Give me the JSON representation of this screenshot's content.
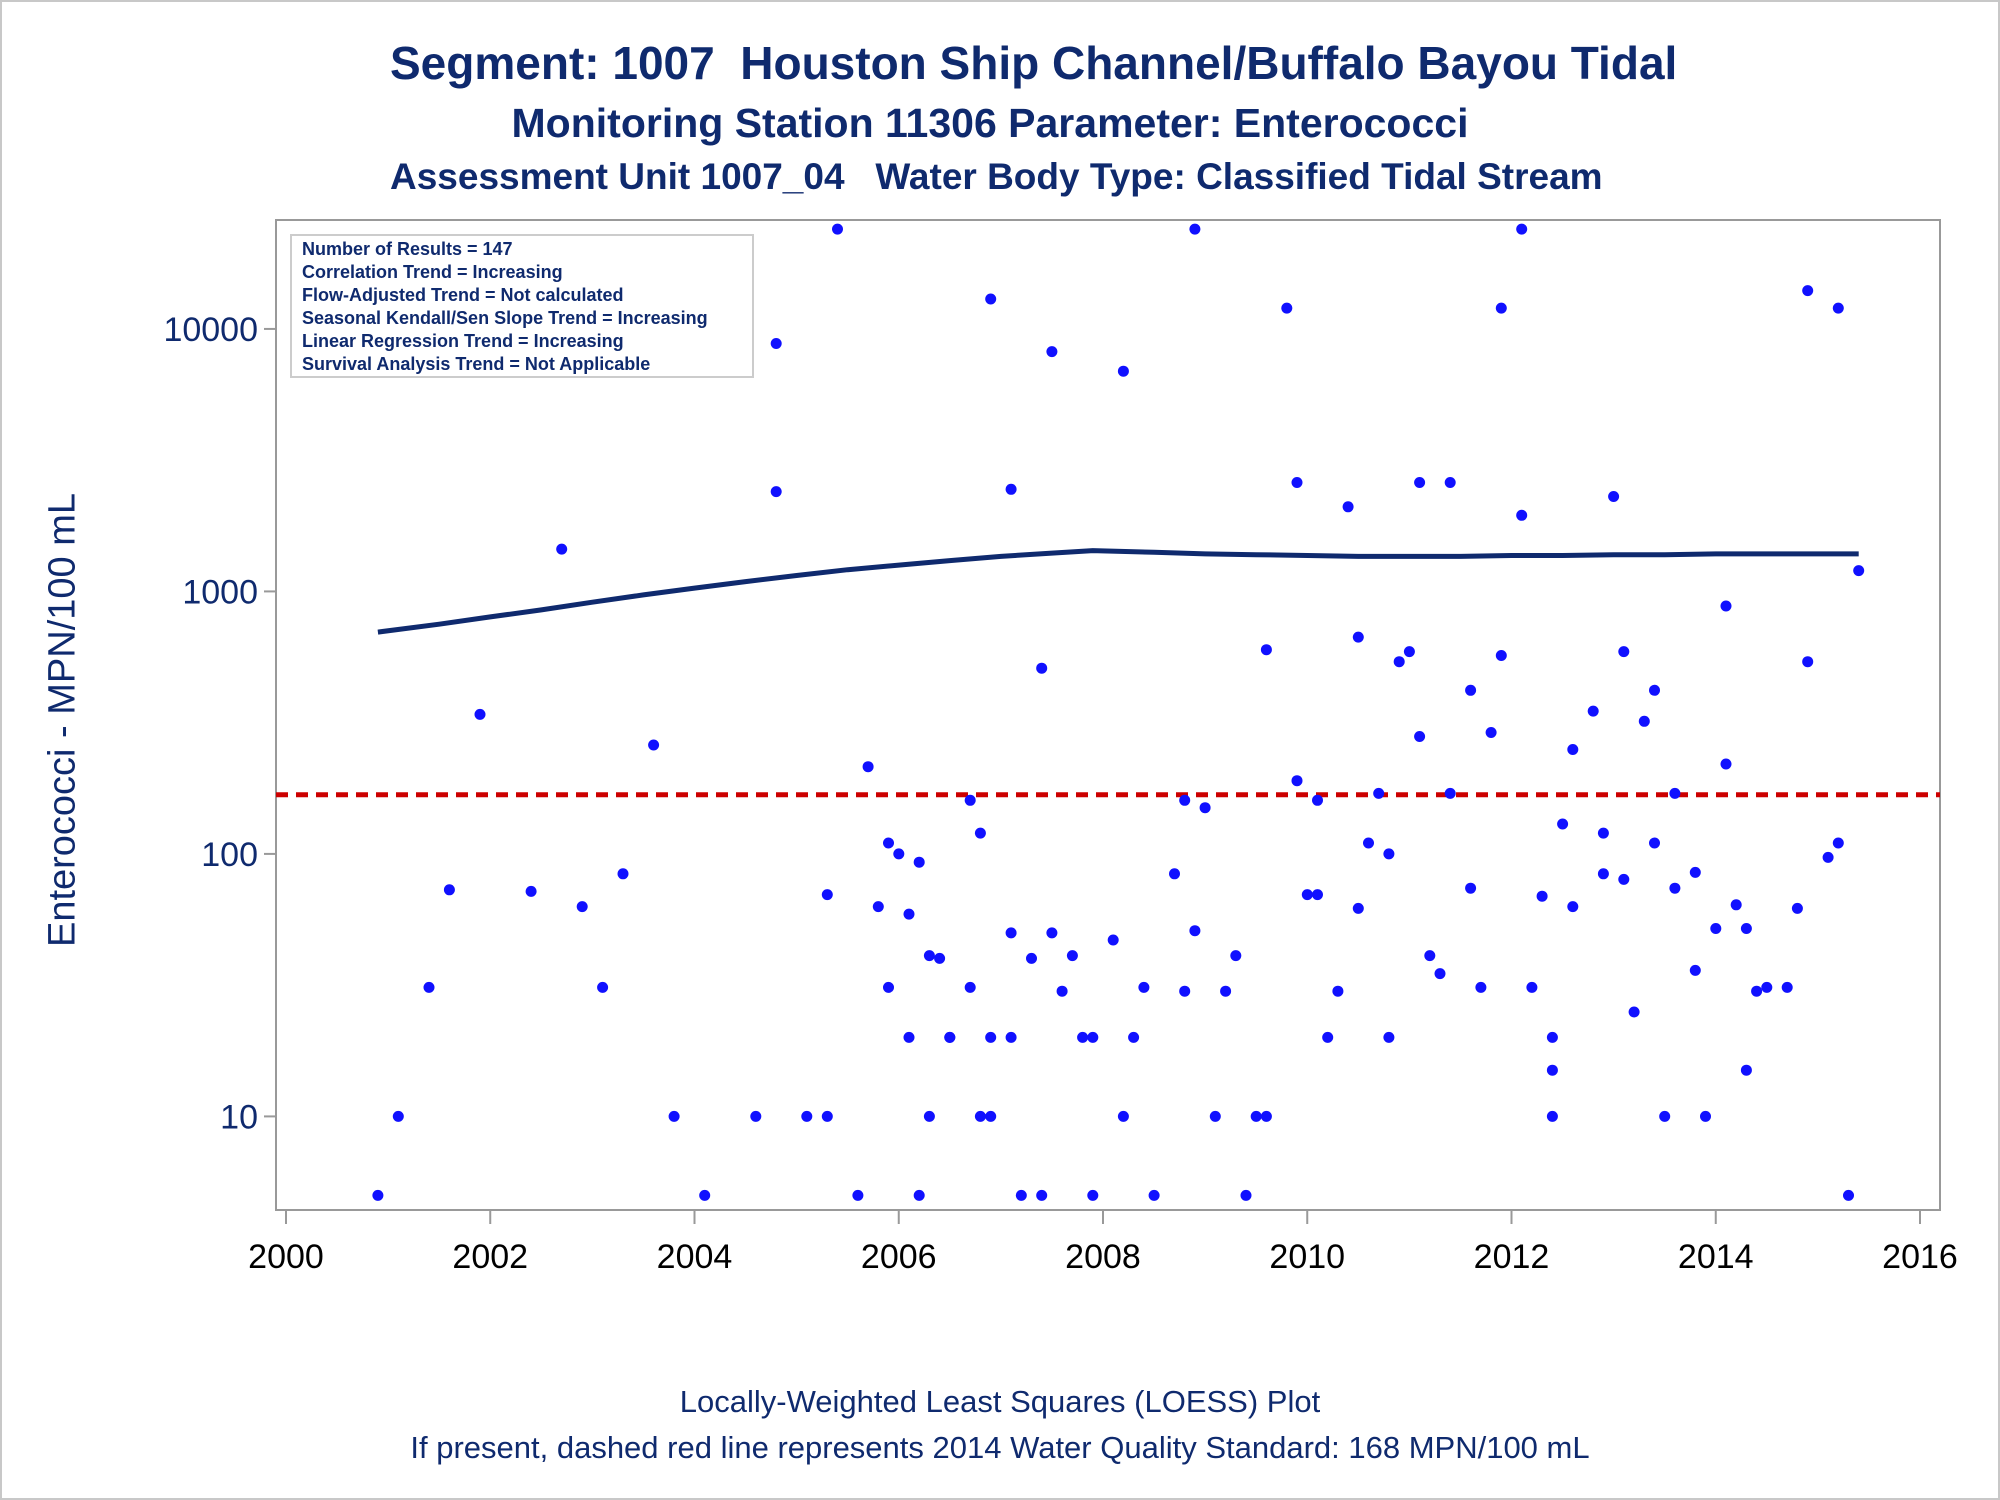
{
  "titles": {
    "line1": "Segment: 1007  Houston Ship Channel/Buffalo Bayou Tidal",
    "line2": "Monitoring Station 11306 Parameter: Enterococci",
    "line3": "Assessment Unit 1007_04   Water Body Type: Classified Tidal Stream"
  },
  "footnotes": {
    "line1": "Locally-Weighted Least Squares (LOESS) Plot",
    "line2": "If present, dashed red line represents 2014 Water Quality Standard: 168 MPN/100 mL"
  },
  "inset": [
    "Number of Results = 147",
    "Correlation Trend = Increasing",
    "Flow-Adjusted Trend = Not calculated",
    "Seasonal Kendall/Sen Slope Trend = Increasing",
    "Linear Regression Trend = Increasing",
    "Survival Analysis Trend = Not Applicable"
  ],
  "colors": {
    "text": "#0f2a6e",
    "points": "#1010ff",
    "loess": "#0f2a6e",
    "standard": "#cc0000",
    "axis": "#999999"
  },
  "chart_data": {
    "type": "scatter",
    "ylabel": "Enterococci - MPN/100 mL",
    "xlabel": "",
    "x_scale": "linear",
    "y_scale": "log",
    "xlim": [
      2000,
      2016
    ],
    "ylim": [
      4.4,
      26000
    ],
    "x_ticks": [
      2000,
      2002,
      2004,
      2006,
      2008,
      2010,
      2012,
      2014,
      2016
    ],
    "y_ticks": [
      10,
      100,
      1000,
      10000
    ],
    "y_tick_labels": [
      "10",
      "100",
      "1000",
      "10000"
    ],
    "standard_line": 168,
    "points": [
      [
        2000.9,
        5
      ],
      [
        2001.1,
        10
      ],
      [
        2001.4,
        31
      ],
      [
        2001.6,
        73
      ],
      [
        2001.9,
        340
      ],
      [
        2002.4,
        72
      ],
      [
        2002.7,
        1450
      ],
      [
        2002.9,
        63
      ],
      [
        2003.1,
        31
      ],
      [
        2003.3,
        84
      ],
      [
        2003.6,
        260
      ],
      [
        2003.8,
        10
      ],
      [
        2004.1,
        5
      ],
      [
        2004.6,
        10
      ],
      [
        2004.8,
        8800
      ],
      [
        2004.8,
        2400
      ],
      [
        2005.1,
        10
      ],
      [
        2005.3,
        70
      ],
      [
        2005.3,
        10
      ],
      [
        2005.4,
        24000
      ],
      [
        2005.6,
        5
      ],
      [
        2005.7,
        215
      ],
      [
        2005.8,
        63
      ],
      [
        2005.9,
        110
      ],
      [
        2005.9,
        31
      ],
      [
        2006.0,
        100
      ],
      [
        2006.1,
        59
      ],
      [
        2006.1,
        20
      ],
      [
        2006.2,
        93
      ],
      [
        2006.2,
        5
      ],
      [
        2006.3,
        10
      ],
      [
        2006.3,
        41
      ],
      [
        2006.4,
        40
      ],
      [
        2006.5,
        20
      ],
      [
        2006.5,
        20
      ],
      [
        2006.7,
        31
      ],
      [
        2006.7,
        160
      ],
      [
        2006.8,
        120
      ],
      [
        2006.8,
        10
      ],
      [
        2006.9,
        10
      ],
      [
        2006.9,
        20
      ],
      [
        2006.9,
        13000
      ],
      [
        2007.1,
        50
      ],
      [
        2007.1,
        2450
      ],
      [
        2007.1,
        20
      ],
      [
        2007.2,
        5
      ],
      [
        2007.3,
        40
      ],
      [
        2007.4,
        510
      ],
      [
        2007.4,
        5
      ],
      [
        2007.5,
        8200
      ],
      [
        2007.5,
        50
      ],
      [
        2007.6,
        30
      ],
      [
        2007.7,
        41
      ],
      [
        2007.8,
        20
      ],
      [
        2007.9,
        20
      ],
      [
        2007.9,
        5
      ],
      [
        2008.1,
        47
      ],
      [
        2008.2,
        10
      ],
      [
        2008.2,
        6900
      ],
      [
        2008.3,
        20
      ],
      [
        2008.4,
        31
      ],
      [
        2008.5,
        5
      ],
      [
        2008.7,
        84
      ],
      [
        2008.8,
        30
      ],
      [
        2008.8,
        160
      ],
      [
        2008.9,
        51
      ],
      [
        2008.9,
        24000
      ],
      [
        2009.0,
        150
      ],
      [
        2009.1,
        10
      ],
      [
        2009.2,
        30
      ],
      [
        2009.3,
        41
      ],
      [
        2009.4,
        5
      ],
      [
        2009.5,
        10
      ],
      [
        2009.6,
        600
      ],
      [
        2009.6,
        10
      ],
      [
        2009.8,
        12000
      ],
      [
        2009.9,
        190
      ],
      [
        2009.9,
        2600
      ],
      [
        2010.0,
        70
      ],
      [
        2010.1,
        160
      ],
      [
        2010.1,
        70
      ],
      [
        2010.2,
        20
      ],
      [
        2010.3,
        30
      ],
      [
        2010.4,
        2100
      ],
      [
        2010.5,
        62
      ],
      [
        2010.5,
        670
      ],
      [
        2010.6,
        110
      ],
      [
        2010.7,
        170
      ],
      [
        2010.8,
        20
      ],
      [
        2010.8,
        100
      ],
      [
        2010.9,
        540
      ],
      [
        2011.0,
        590
      ],
      [
        2011.1,
        280
      ],
      [
        2011.1,
        2600
      ],
      [
        2011.2,
        41
      ],
      [
        2011.3,
        35
      ],
      [
        2011.4,
        170
      ],
      [
        2011.4,
        2600
      ],
      [
        2011.6,
        74
      ],
      [
        2011.6,
        420
      ],
      [
        2011.7,
        31
      ],
      [
        2011.8,
        290
      ],
      [
        2011.9,
        12000
      ],
      [
        2011.9,
        570
      ],
      [
        2012.1,
        24000
      ],
      [
        2012.1,
        1950
      ],
      [
        2012.2,
        31
      ],
      [
        2012.3,
        69
      ],
      [
        2012.4,
        20
      ],
      [
        2012.4,
        10
      ],
      [
        2012.4,
        15
      ],
      [
        2012.5,
        130
      ],
      [
        2012.6,
        250
      ],
      [
        2012.6,
        63
      ],
      [
        2012.8,
        350
      ],
      [
        2012.9,
        84
      ],
      [
        2012.9,
        120
      ],
      [
        2013.0,
        2300
      ],
      [
        2013.1,
        590
      ],
      [
        2013.1,
        80
      ],
      [
        2013.2,
        25
      ],
      [
        2013.3,
        320
      ],
      [
        2013.4,
        110
      ],
      [
        2013.4,
        420
      ],
      [
        2013.5,
        10
      ],
      [
        2013.6,
        170
      ],
      [
        2013.6,
        74
      ],
      [
        2013.8,
        36
      ],
      [
        2013.8,
        85
      ],
      [
        2013.9,
        10
      ],
      [
        2014.0,
        52
      ],
      [
        2014.1,
        880
      ],
      [
        2014.1,
        220
      ],
      [
        2014.2,
        64
      ],
      [
        2014.3,
        15
      ],
      [
        2014.3,
        52
      ],
      [
        2014.4,
        30
      ],
      [
        2014.5,
        31
      ],
      [
        2014.7,
        31
      ],
      [
        2014.8,
        62
      ],
      [
        2014.9,
        14000
      ],
      [
        2014.9,
        540
      ],
      [
        2015.1,
        97
      ],
      [
        2015.2,
        110
      ],
      [
        2015.2,
        12000
      ],
      [
        2015.3,
        5
      ],
      [
        2015.4,
        1200
      ]
    ],
    "loess": [
      [
        2000.9,
        700
      ],
      [
        2001.5,
        750
      ],
      [
        2002.0,
        800
      ],
      [
        2002.5,
        850
      ],
      [
        2003.0,
        910
      ],
      [
        2003.5,
        970
      ],
      [
        2004.0,
        1030
      ],
      [
        2004.5,
        1090
      ],
      [
        2005.0,
        1150
      ],
      [
        2005.5,
        1210
      ],
      [
        2006.0,
        1260
      ],
      [
        2006.5,
        1310
      ],
      [
        2007.0,
        1360
      ],
      [
        2007.5,
        1400
      ],
      [
        2007.9,
        1430
      ],
      [
        2008.5,
        1410
      ],
      [
        2009.0,
        1390
      ],
      [
        2009.5,
        1380
      ],
      [
        2010.0,
        1370
      ],
      [
        2010.5,
        1360
      ],
      [
        2011.0,
        1360
      ],
      [
        2011.5,
        1360
      ],
      [
        2012.0,
        1370
      ],
      [
        2012.5,
        1370
      ],
      [
        2013.0,
        1380
      ],
      [
        2013.5,
        1380
      ],
      [
        2014.0,
        1390
      ],
      [
        2014.5,
        1390
      ],
      [
        2015.0,
        1390
      ],
      [
        2015.4,
        1390
      ]
    ]
  }
}
